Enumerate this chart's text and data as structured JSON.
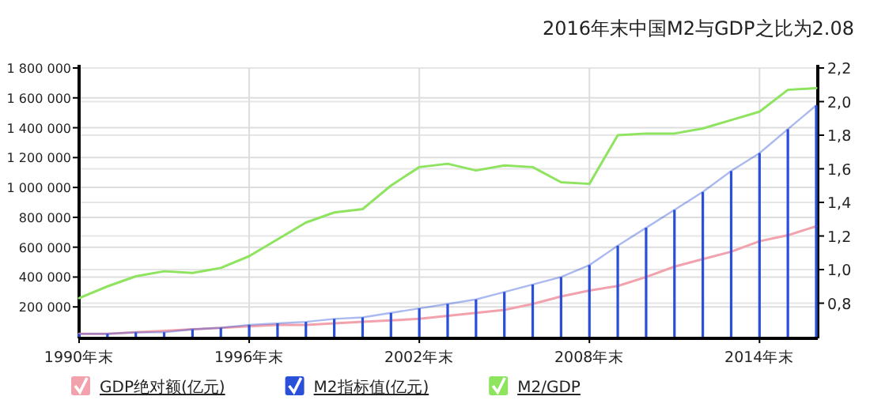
{
  "chart_data": {
    "type": "line",
    "title": "2016年末中国M2与GDP之比为2.08",
    "x": [
      1990,
      1991,
      1992,
      1993,
      1994,
      1995,
      1996,
      1997,
      1998,
      1999,
      2000,
      2001,
      2002,
      2003,
      2004,
      2005,
      2006,
      2007,
      2008,
      2009,
      2010,
      2011,
      2012,
      2013,
      2014,
      2015,
      2016
    ],
    "series": [
      {
        "name": "GDP绝对额(亿元)",
        "color": "#f2a2ad",
        "values": [
          20000,
          20000,
          30000,
          40000,
          50000,
          60000,
          70000,
          80000,
          80000,
          90000,
          100000,
          110000,
          120000,
          140000,
          160000,
          180000,
          220000,
          270000,
          310000,
          340000,
          400000,
          470000,
          520000,
          570000,
          640000,
          680000,
          740000
        ]
      },
      {
        "name": "M2指标值(亿元)",
        "type": "bar",
        "color": "#2a4fd8",
        "values": [
          20000,
          20000,
          30000,
          30000,
          50000,
          60000,
          80000,
          90000,
          100000,
          120000,
          130000,
          160000,
          190000,
          220000,
          250000,
          300000,
          350000,
          400000,
          480000,
          610000,
          730000,
          850000,
          970000,
          1110000,
          1230000,
          1390000,
          1550000
        ]
      },
      {
        "name": "M2/GDP",
        "axis": "y2",
        "color": "#8ee35f",
        "values": [
          0.83,
          0.9,
          0.96,
          0.99,
          0.98,
          1.01,
          1.08,
          1.18,
          1.28,
          1.34,
          1.36,
          1.5,
          1.61,
          1.63,
          1.59,
          1.62,
          1.61,
          1.52,
          1.51,
          1.8,
          1.81,
          1.81,
          1.84,
          1.89,
          1.94,
          2.07,
          2.08
        ]
      }
    ],
    "xlim": [
      1990,
      2016
    ],
    "xticks": [
      {
        "value": 1990,
        "label": "1990年末"
      },
      {
        "value": 1996,
        "label": "1996年末"
      },
      {
        "value": 2002,
        "label": "2002年末"
      },
      {
        "value": 2008,
        "label": "2008年末"
      },
      {
        "value": 2014,
        "label": "2014年末"
      }
    ],
    "ylim": [
      0,
      1800000
    ],
    "yticks": [
      {
        "value": 200000,
        "label": "200 000"
      },
      {
        "value": 400000,
        "label": "400 000"
      },
      {
        "value": 600000,
        "label": "600 000"
      },
      {
        "value": 800000,
        "label": "800 000"
      },
      {
        "value": 1000000,
        "label": "1 000 000"
      },
      {
        "value": 1200000,
        "label": "1 200 000"
      },
      {
        "value": 1400000,
        "label": "1 400 000"
      },
      {
        "value": 1600000,
        "label": "1 600 000"
      },
      {
        "value": 1800000,
        "label": "1 800 000"
      }
    ],
    "y2lim": [
      0.6,
      2.2
    ],
    "y2ticks": [
      {
        "value": 0.8,
        "label": "0,8"
      },
      {
        "value": 1.0,
        "label": "1,0"
      },
      {
        "value": 1.2,
        "label": "1,2"
      },
      {
        "value": 1.4,
        "label": "1,4"
      },
      {
        "value": 1.6,
        "label": "1,6"
      },
      {
        "value": 1.8,
        "label": "1,8"
      },
      {
        "value": 2.0,
        "label": "2,0"
      },
      {
        "value": 2.2,
        "label": "2,2"
      }
    ],
    "grid": true,
    "legend": "bottom left"
  }
}
